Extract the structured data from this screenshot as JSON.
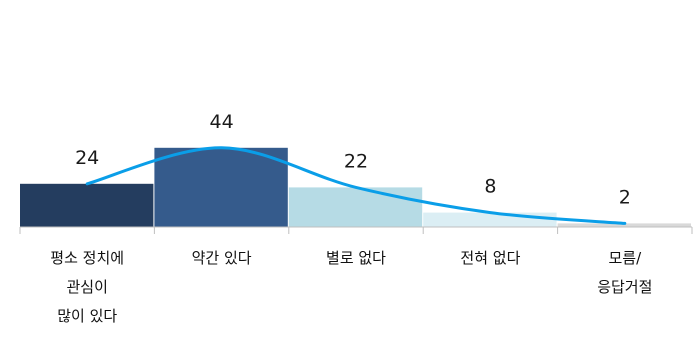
{
  "chart_data": {
    "type": "bar",
    "title": "",
    "xlabel": "",
    "ylabel": "",
    "categories": [
      "평소 정치에\n관심이\n많이 있다",
      "약간 있다",
      "별로 없다",
      "전혀 없다",
      "모름/\n응답거절"
    ],
    "values": [
      24,
      44,
      22,
      8,
      2
    ],
    "bar_colors": [
      "#243d5f",
      "#355b8c",
      "#b6dbe5",
      "#dbeef4",
      "#d9d9d9"
    ],
    "line_color": "#0a9ee8",
    "ylim": [
      0,
      50
    ],
    "grid": false,
    "legend": "none",
    "overlay": "smooth trend line through bar tops"
  }
}
